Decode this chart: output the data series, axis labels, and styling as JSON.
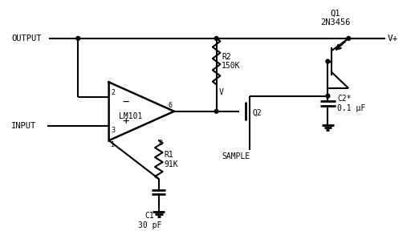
{
  "background": "#ffffff",
  "line_color": "#000000",
  "lw": 1.5,
  "op_amp_label": "LM101",
  "q1_label": "Q1\n2N3456",
  "q2_label": "Q2",
  "r1_label": "R1\n91K",
  "r2_label": "R2\n150K",
  "c1_label": "C1\n30 pF",
  "c2_label": "C2*\n0.1 μF",
  "sample_label": "SAMPLE",
  "v_label": "V",
  "vplus_label": "V+",
  "output_label": "OUTPUT",
  "input_label": "INPUT"
}
